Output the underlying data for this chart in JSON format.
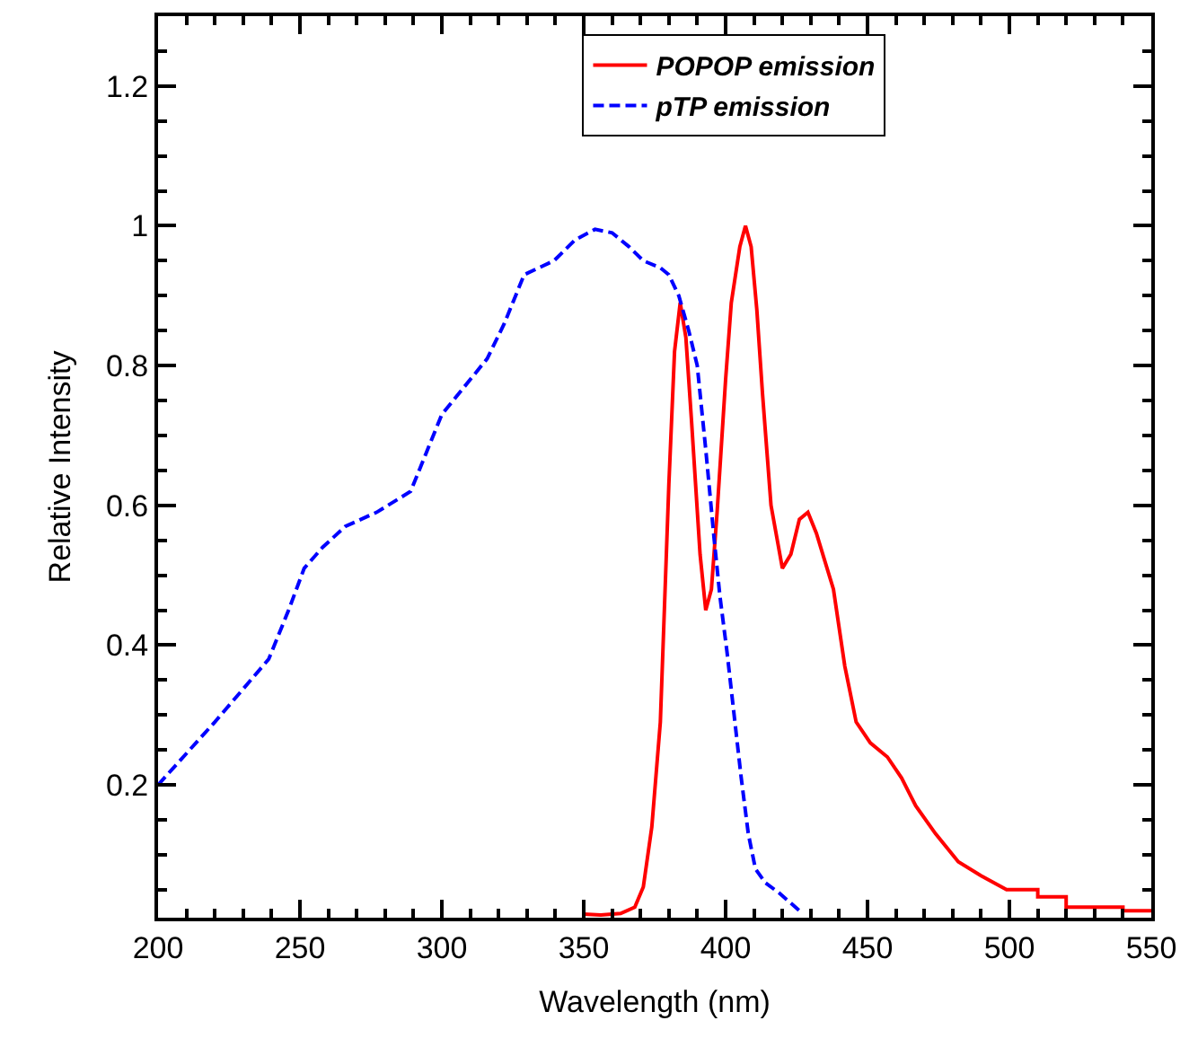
{
  "chart_data": {
    "type": "line",
    "xlabel": "Wavelength (nm)",
    "ylabel": "Relative Intensity",
    "xlim": [
      200,
      550
    ],
    "xticks": [
      200,
      250,
      300,
      350,
      400,
      450,
      500,
      550
    ],
    "ylim": [
      0.01,
      1.3
    ],
    "yticks": [
      0.2,
      0.4,
      0.6,
      0.8,
      {
        "value": 1,
        "label": "1"
      },
      1.2
    ],
    "legend": "top",
    "marker": "none",
    "series": [
      {
        "name": "POPOP emission",
        "color": "#ff0000",
        "line_style": "solid",
        "x": [
          350,
          356,
          363,
          368,
          371,
          374,
          377,
          380,
          382,
          384,
          386,
          388,
          391,
          393,
          395,
          397,
          400,
          402,
          405,
          407,
          409,
          411,
          413,
          416,
          420,
          423,
          426,
          429,
          432,
          435,
          438,
          442,
          446,
          451,
          457,
          462,
          467,
          474,
          482,
          490,
          499,
          510,
          510,
          520,
          520,
          540,
          540,
          550
        ],
        "values": [
          0.015,
          0.014,
          0.016,
          0.025,
          0.054,
          0.14,
          0.29,
          0.63,
          0.82,
          0.89,
          0.84,
          0.72,
          0.53,
          0.45,
          0.48,
          0.59,
          0.78,
          0.89,
          0.97,
          1.0,
          0.97,
          0.88,
          0.76,
          0.6,
          0.51,
          0.53,
          0.58,
          0.59,
          0.56,
          0.52,
          0.48,
          0.37,
          0.29,
          0.26,
          0.24,
          0.21,
          0.17,
          0.13,
          0.09,
          0.07,
          0.05,
          0.05,
          0.04,
          0.04,
          0.025,
          0.025,
          0.02,
          0.02
        ]
      },
      {
        "name": "pTP emission",
        "color": "#0000ff",
        "line_style": "dashed",
        "x": [
          200,
          220,
          239,
          246,
          251.5,
          258,
          266,
          277,
          289,
          295,
          300,
          308,
          316,
          322,
          329,
          339.5,
          347,
          354,
          360,
          366,
          371,
          377,
          380,
          383.5,
          387,
          390,
          393,
          396,
          398,
          400.5,
          403,
          405.5,
          408,
          410.5,
          414,
          419,
          426
        ],
        "values": [
          0.2,
          0.29,
          0.38,
          0.45,
          0.51,
          0.54,
          0.57,
          0.59,
          0.62,
          0.68,
          0.73,
          0.77,
          0.81,
          0.86,
          0.93,
          0.95,
          0.98,
          0.995,
          0.99,
          0.97,
          0.95,
          0.94,
          0.93,
          0.9,
          0.85,
          0.8,
          0.68,
          0.55,
          0.47,
          0.39,
          0.3,
          0.21,
          0.13,
          0.08,
          0.06,
          0.045,
          0.02
        ]
      }
    ]
  }
}
